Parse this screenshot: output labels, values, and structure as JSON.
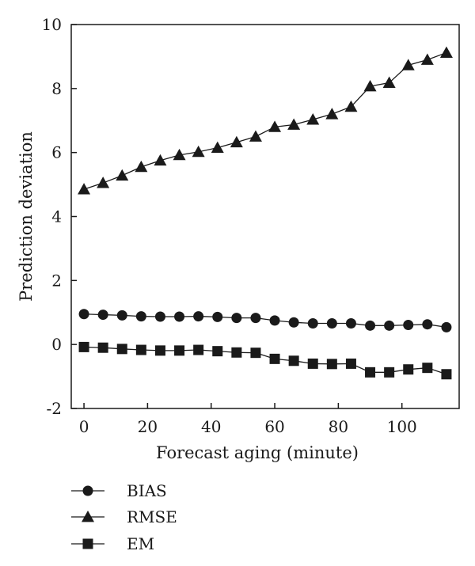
{
  "chart_data": {
    "type": "line",
    "xlabel": "Forecast aging (minute)",
    "ylabel": "Prediction deviation",
    "xlim": [
      -4,
      118
    ],
    "ylim": [
      -2,
      10
    ],
    "xticks": [
      0,
      20,
      40,
      60,
      80,
      100
    ],
    "yticks": [
      -2,
      0,
      2,
      4,
      6,
      8,
      10
    ],
    "grid": false,
    "legend_position": "below-left",
    "x": [
      0,
      6,
      12,
      18,
      24,
      30,
      36,
      42,
      48,
      54,
      60,
      66,
      72,
      78,
      84,
      90,
      96,
      102,
      108,
      114
    ],
    "series": [
      {
        "name": "BIAS",
        "marker": "circle",
        "values": [
          0.95,
          0.93,
          0.91,
          0.88,
          0.87,
          0.87,
          0.88,
          0.86,
          0.83,
          0.83,
          0.75,
          0.69,
          0.66,
          0.66,
          0.66,
          0.59,
          0.59,
          0.61,
          0.63,
          0.54
        ]
      },
      {
        "name": "RMSE",
        "marker": "triangle",
        "values": [
          4.85,
          5.05,
          5.28,
          5.55,
          5.75,
          5.92,
          6.02,
          6.15,
          6.32,
          6.5,
          6.8,
          6.87,
          7.03,
          7.2,
          7.43,
          8.07,
          8.18,
          8.73,
          8.9,
          9.12
        ]
      },
      {
        "name": "EM",
        "marker": "square",
        "values": [
          -0.08,
          -0.1,
          -0.14,
          -0.17,
          -0.19,
          -0.19,
          -0.17,
          -0.21,
          -0.25,
          -0.26,
          -0.45,
          -0.51,
          -0.6,
          -0.61,
          -0.6,
          -0.87,
          -0.87,
          -0.78,
          -0.73,
          -0.93
        ]
      }
    ]
  },
  "colors": {
    "line": "#1a1a1a",
    "axis": "#1a1a1a"
  }
}
